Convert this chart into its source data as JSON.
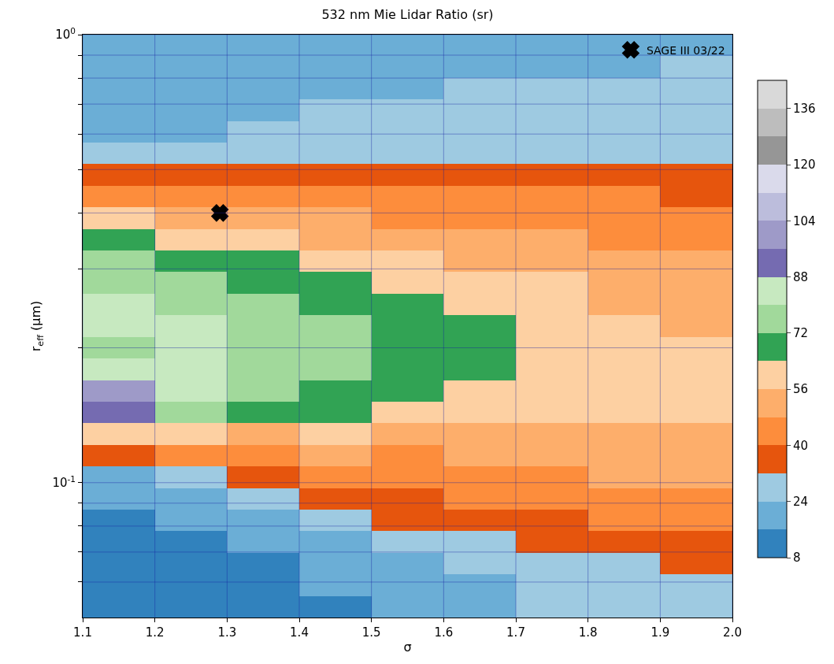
{
  "chart_data": {
    "type": "heatmap",
    "title": "532 nm Mie Lidar Ratio (sr)",
    "xlabel": "σ",
    "ylabel": "r$_{eff}$ (μm)",
    "x": [
      1.15,
      1.25,
      1.35,
      1.45,
      1.55,
      1.65,
      1.75,
      1.85,
      1.95
    ],
    "cells": [
      [
        20,
        20,
        20,
        20,
        20,
        20,
        20,
        20,
        20
      ],
      [
        20,
        20,
        20,
        20,
        20,
        20,
        20,
        20,
        28
      ],
      [
        20,
        20,
        20,
        20,
        20,
        28,
        28,
        28,
        28
      ],
      [
        20,
        20,
        20,
        28,
        28,
        28,
        28,
        28,
        28
      ],
      [
        20,
        20,
        28,
        28,
        28,
        28,
        28,
        28,
        28
      ],
      [
        28,
        28,
        28,
        28,
        28,
        28,
        28,
        28,
        28
      ],
      [
        36,
        36,
        36,
        36,
        36,
        36,
        36,
        36,
        36
      ],
      [
        44,
        44,
        44,
        44,
        44,
        44,
        44,
        44,
        36
      ],
      [
        60,
        52,
        52,
        52,
        44,
        44,
        44,
        44,
        44
      ],
      [
        68,
        60,
        60,
        52,
        52,
        52,
        52,
        44,
        44
      ],
      [
        76,
        68,
        68,
        60,
        60,
        52,
        52,
        52,
        52
      ],
      [
        76,
        76,
        68,
        68,
        60,
        60,
        60,
        52,
        52
      ],
      [
        84,
        76,
        76,
        68,
        68,
        60,
        60,
        52,
        52
      ],
      [
        84,
        84,
        76,
        76,
        68,
        68,
        60,
        60,
        52
      ],
      [
        76,
        84,
        76,
        76,
        68,
        68,
        60,
        60,
        60
      ],
      [
        84,
        84,
        76,
        76,
        68,
        68,
        60,
        60,
        60
      ],
      [
        100,
        84,
        76,
        68,
        68,
        60,
        60,
        60,
        60
      ],
      [
        92,
        76,
        68,
        68,
        60,
        60,
        60,
        60,
        60
      ],
      [
        60,
        60,
        52,
        60,
        52,
        52,
        52,
        52,
        52
      ],
      [
        36,
        44,
        44,
        52,
        44,
        52,
        52,
        52,
        52
      ],
      [
        20,
        28,
        36,
        44,
        44,
        44,
        44,
        52,
        52
      ],
      [
        20,
        20,
        28,
        36,
        36,
        44,
        44,
        44,
        44
      ],
      [
        12,
        20,
        20,
        28,
        36,
        36,
        36,
        44,
        44
      ],
      [
        12,
        12,
        20,
        20,
        28,
        28,
        36,
        36,
        36
      ],
      [
        12,
        12,
        12,
        20,
        20,
        28,
        28,
        28,
        36
      ],
      [
        12,
        12,
        12,
        20,
        20,
        20,
        28,
        28,
        28
      ],
      [
        12,
        12,
        12,
        12,
        20,
        20,
        28,
        28,
        28
      ]
    ],
    "colors": [
      "#3182bd",
      "#6baed6",
      "#9ecae1",
      "#e6550d",
      "#fd8d3c",
      "#fdae6b",
      "#fdd0a2",
      "#31a354",
      "#a1d99b",
      "#c7e9c0",
      "#756bb1",
      "#9e9ac8",
      "#bcbddc",
      "#dadaeb",
      "#969696",
      "#bdbdbd",
      "#d9d9d9"
    ],
    "clim": [
      8,
      144
    ],
    "cticks": [
      8,
      24,
      40,
      56,
      72,
      88,
      104,
      120,
      136
    ],
    "xlim": [
      1.1,
      2.0
    ],
    "xticks": [
      {
        "value": 1.1,
        "label": "1.1"
      },
      {
        "value": 1.2,
        "label": "1.2"
      },
      {
        "value": 1.3,
        "label": "1.3"
      },
      {
        "value": 1.4,
        "label": "1.4"
      },
      {
        "value": 1.5,
        "label": "1.5"
      },
      {
        "value": 1.6,
        "label": "1.6"
      },
      {
        "value": 1.7,
        "label": "1.7"
      },
      {
        "value": 1.8,
        "label": "1.8"
      },
      {
        "value": 1.9,
        "label": "1.9"
      },
      {
        "value": 2.0,
        "label": "2.0"
      }
    ],
    "ylim": [
      0.05,
      1
    ],
    "log": "y",
    "yticks": [
      {
        "value": 0.06,
        "label": null
      },
      {
        "value": 0.07,
        "label": null
      },
      {
        "value": 0.08,
        "label": null
      },
      {
        "value": 0.09,
        "label": null
      },
      {
        "value": 0.1,
        "label": "10$^{-1}$"
      },
      {
        "value": 0.2,
        "label": null
      },
      {
        "value": 0.3,
        "label": null
      },
      {
        "value": 0.4,
        "label": null
      },
      {
        "value": 0.5,
        "label": null
      },
      {
        "value": 0.6,
        "label": null
      },
      {
        "value": 0.7,
        "label": null
      },
      {
        "value": 0.8,
        "label": null
      },
      {
        "value": 0.9,
        "label": null
      },
      {
        "value": 1,
        "label": "10$^{0}$"
      }
    ],
    "grid": true,
    "legend": "top right",
    "series": [
      {
        "type": "scatter",
        "name": "SAGE III 03/22",
        "color": "#000000",
        "marker": "cross",
        "x": [
          1.29
        ],
        "values": [
          0.4
        ]
      }
    ]
  }
}
